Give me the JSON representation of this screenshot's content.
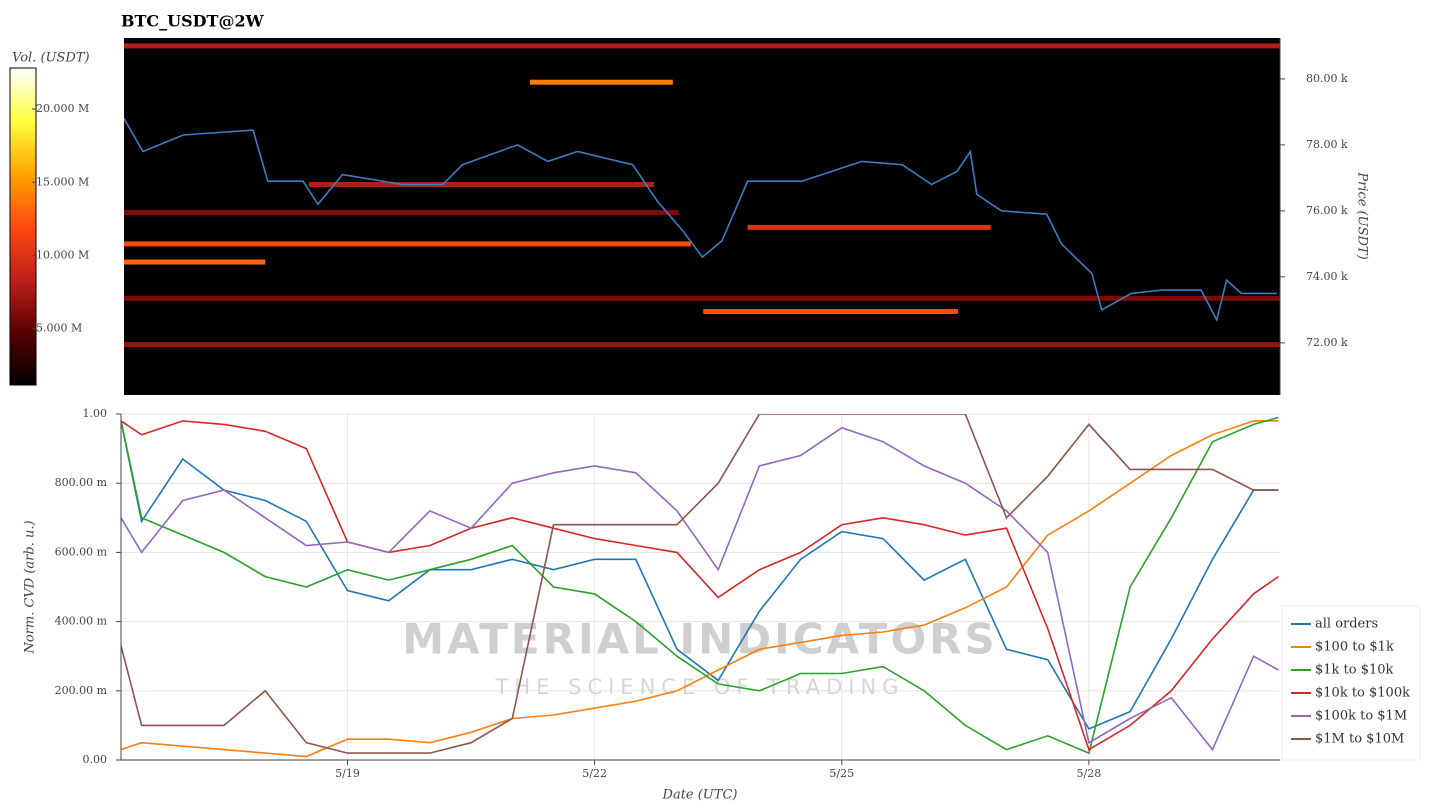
{
  "chart_data": [
    {
      "type": "heatmap",
      "title": "BTC_USDT@2W",
      "ylabel": "Price (USDT)",
      "colorbar_label": "Vol. (USDT)",
      "xlim": [
        16.25,
        30.32
      ],
      "ylim": [
        70.42,
        81.24
      ],
      "yticks": [
        {
          "value": 72,
          "label": "72.00 k"
        },
        {
          "value": 74,
          "label": "74.00 k"
        },
        {
          "value": 76,
          "label": "76.00 k"
        },
        {
          "value": 78,
          "label": "78.00 k"
        },
        {
          "value": 80,
          "label": "80.00 k"
        }
      ],
      "clim": [
        1160000,
        22800000
      ],
      "cticks": [
        {
          "value": 5000000,
          "label": "5.000 M"
        },
        {
          "value": 10000000,
          "label": "10.000 M"
        },
        {
          "value": 15000000,
          "label": "15.000 M"
        },
        {
          "value": 20000000,
          "label": "20.000 M"
        }
      ],
      "colorscale": [
        "#000000",
        "#5a0000",
        "#c0201a",
        "#ff4a10",
        "#ffa500",
        "#ffff40",
        "#ffffff"
      ],
      "line": {
        "color": "#3a7fc1",
        "x": [
          16.25,
          16.48,
          16.97,
          17.82,
          18.0,
          18.43,
          18.61,
          18.91,
          19.64,
          20.13,
          20.37,
          21.04,
          21.41,
          21.77,
          22.44,
          22.74,
          23.05,
          23.29,
          23.53,
          23.84,
          24.5,
          24.87,
          25.23,
          25.72,
          26.08,
          26.39,
          26.55,
          26.63,
          26.93,
          27.48,
          27.66,
          28.03,
          28.15,
          28.51,
          28.88,
          29.36,
          29.55,
          29.67,
          29.85,
          30.28
        ],
        "values": [
          78.8,
          77.8,
          78.3,
          78.45,
          76.9,
          76.9,
          76.2,
          77.1,
          76.8,
          76.8,
          77.4,
          78.0,
          77.5,
          77.8,
          77.4,
          76.3,
          75.4,
          74.6,
          75.1,
          76.9,
          76.9,
          77.2,
          77.5,
          77.4,
          76.8,
          77.2,
          77.8,
          76.5,
          76.0,
          75.9,
          75.0,
          74.1,
          73.0,
          73.5,
          73.6,
          73.6,
          72.7,
          73.9,
          73.5,
          73.5
        ]
      },
      "levels": [
        {
          "price": 81.0,
          "start": 16.25,
          "end": 30.32,
          "volume": 8000000
        },
        {
          "price": 79.9,
          "start": 21.19,
          "end": 22.93,
          "volume": 14000000
        },
        {
          "price": 76.8,
          "start": 18.5,
          "end": 22.7,
          "volume": 8000000
        },
        {
          "price": 75.95,
          "start": 16.25,
          "end": 23.0,
          "volume": 6000000
        },
        {
          "price": 75.5,
          "start": 23.84,
          "end": 26.8,
          "volume": 10000000
        },
        {
          "price": 75.0,
          "start": 16.25,
          "end": 23.15,
          "volume": 12000000
        },
        {
          "price": 74.45,
          "start": 16.25,
          "end": 17.97,
          "volume": 13000000
        },
        {
          "price": 73.35,
          "start": 16.25,
          "end": 30.32,
          "volume": 6000000
        },
        {
          "price": 72.95,
          "start": 23.3,
          "end": 26.4,
          "volume": 12000000
        },
        {
          "price": 71.95,
          "start": 16.25,
          "end": 30.32,
          "volume": 7000000
        }
      ]
    },
    {
      "type": "line",
      "xlabel": "Date (UTC)",
      "ylabel": "Norm. CVD (arb. u.)",
      "xlim": [
        16.25,
        30.32
      ],
      "ylim": [
        0,
        1
      ],
      "xticks": [
        {
          "value": 19,
          "label": "5/19"
        },
        {
          "value": 22,
          "label": "5/22"
        },
        {
          "value": 25,
          "label": "5/25"
        },
        {
          "value": 28,
          "label": "5/28"
        }
      ],
      "yticks": [
        {
          "value": 0,
          "label": "0.00"
        },
        {
          "value": 0.2,
          "label": "200.00 m"
        },
        {
          "value": 0.4,
          "label": "400.00 m"
        },
        {
          "value": 0.6,
          "label": "600.00 m"
        },
        {
          "value": 0.8,
          "label": "800.00 m"
        },
        {
          "value": 1,
          "label": "1.00"
        }
      ],
      "grid": true,
      "legend": "lower right",
      "watermark": {
        "title": "MATERIAL INDICATORS",
        "subtitle": "THE SCIENCE OF TRADING"
      },
      "x": [
        16.25,
        16.5,
        17,
        17.5,
        18,
        18.5,
        19,
        19.5,
        20,
        20.5,
        21,
        21.5,
        22,
        22.5,
        23,
        23.5,
        24,
        24.5,
        25,
        25.5,
        26,
        26.5,
        27,
        27.5,
        28,
        28.5,
        29,
        29.5,
        30,
        30.3
      ],
      "series": [
        {
          "name": "all orders",
          "color": "#1f77b4",
          "values": [
            0.98,
            0.69,
            0.87,
            0.78,
            0.75,
            0.69,
            0.49,
            0.46,
            0.55,
            0.55,
            0.58,
            0.55,
            0.58,
            0.58,
            0.32,
            0.23,
            0.43,
            0.58,
            0.66,
            0.64,
            0.52,
            0.58,
            0.32,
            0.29,
            0.09,
            0.14,
            0.35,
            0.58,
            0.78,
            0.78
          ]
        },
        {
          "name": "$100 to $1k",
          "color": "#ff7f0e",
          "values": [
            0.03,
            0.05,
            0.04,
            0.03,
            0.02,
            0.01,
            0.06,
            0.06,
            0.05,
            0.08,
            0.12,
            0.13,
            0.15,
            0.17,
            0.2,
            0.26,
            0.32,
            0.34,
            0.36,
            0.37,
            0.39,
            0.44,
            0.5,
            0.65,
            0.72,
            0.8,
            0.88,
            0.94,
            0.98,
            0.98
          ]
        },
        {
          "name": "$1k to $10k",
          "color": "#2ca02c",
          "values": [
            0.98,
            0.7,
            0.65,
            0.6,
            0.53,
            0.5,
            0.55,
            0.52,
            0.55,
            0.58,
            0.62,
            0.5,
            0.48,
            0.4,
            0.3,
            0.22,
            0.2,
            0.25,
            0.25,
            0.27,
            0.2,
            0.1,
            0.03,
            0.07,
            0.02,
            0.5,
            0.7,
            0.92,
            0.97,
            0.99
          ]
        },
        {
          "name": "$10k to $100k",
          "color": "#d62728",
          "values": [
            0.98,
            0.94,
            0.98,
            0.97,
            0.95,
            0.9,
            0.63,
            0.6,
            0.62,
            0.67,
            0.7,
            0.67,
            0.64,
            0.62,
            0.6,
            0.47,
            0.55,
            0.6,
            0.68,
            0.7,
            0.68,
            0.65,
            0.67,
            0.38,
            0.03,
            0.1,
            0.2,
            0.35,
            0.48,
            0.53
          ]
        },
        {
          "name": "$100k to $1M",
          "color": "#9467bd",
          "values": [
            0.7,
            0.6,
            0.75,
            0.78,
            0.7,
            0.62,
            0.63,
            0.6,
            0.72,
            0.67,
            0.8,
            0.83,
            0.85,
            0.83,
            0.72,
            0.55,
            0.85,
            0.88,
            0.96,
            0.92,
            0.85,
            0.8,
            0.72,
            0.6,
            0.05,
            0.12,
            0.18,
            0.03,
            0.3,
            0.26
          ]
        },
        {
          "name": "$1M to $10M",
          "color": "#8c564b",
          "values": [
            0.33,
            0.1,
            0.1,
            0.1,
            0.2,
            0.05,
            0.02,
            0.02,
            0.02,
            0.05,
            0.12,
            0.68,
            0.68,
            0.68,
            0.68,
            0.8,
            1,
            1,
            1,
            1,
            1,
            1,
            0.7,
            0.82,
            0.97,
            0.84,
            0.84,
            0.84,
            0.78,
            0.78
          ]
        }
      ]
    }
  ]
}
